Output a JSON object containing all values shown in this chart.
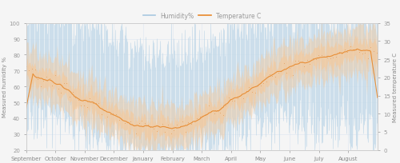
{
  "legend_labels": [
    "Humidity%",
    "Temperature C"
  ],
  "humidity_fill_color": "#c5dff0",
  "humidity_line_color": "#a8c8e0",
  "temp_fill_color": "#f5c89a",
  "temp_line_color": "#e8882a",
  "left_ylabel": "Measured humidity %",
  "right_ylabel": "Measured temperature C",
  "ylim_left": [
    20,
    100
  ],
  "ylim_right": [
    0,
    35
  ],
  "yticks_left": [
    20,
    30,
    40,
    50,
    60,
    70,
    80,
    90,
    100
  ],
  "yticks_right": [
    0,
    5,
    10,
    15,
    20,
    25,
    30,
    35
  ],
  "months": [
    "September",
    "October",
    "November",
    "December",
    "January",
    "February",
    "March",
    "April",
    "May",
    "June",
    "July",
    "August"
  ],
  "n_points": 8760,
  "bg_color": "#f5f5f5",
  "grid_color": "#dce6f0",
  "spine_color": "#cccccc",
  "tick_color": "#999999",
  "label_fontsize": 5,
  "legend_fontsize": 5.5,
  "tick_fontsize": 5,
  "hum_means": [
    75,
    72,
    65,
    55,
    45,
    50,
    58,
    68,
    72,
    70,
    72,
    73
  ],
  "temp_means": [
    22,
    18,
    13,
    8,
    6,
    7,
    11,
    17,
    22,
    25,
    27,
    26
  ]
}
